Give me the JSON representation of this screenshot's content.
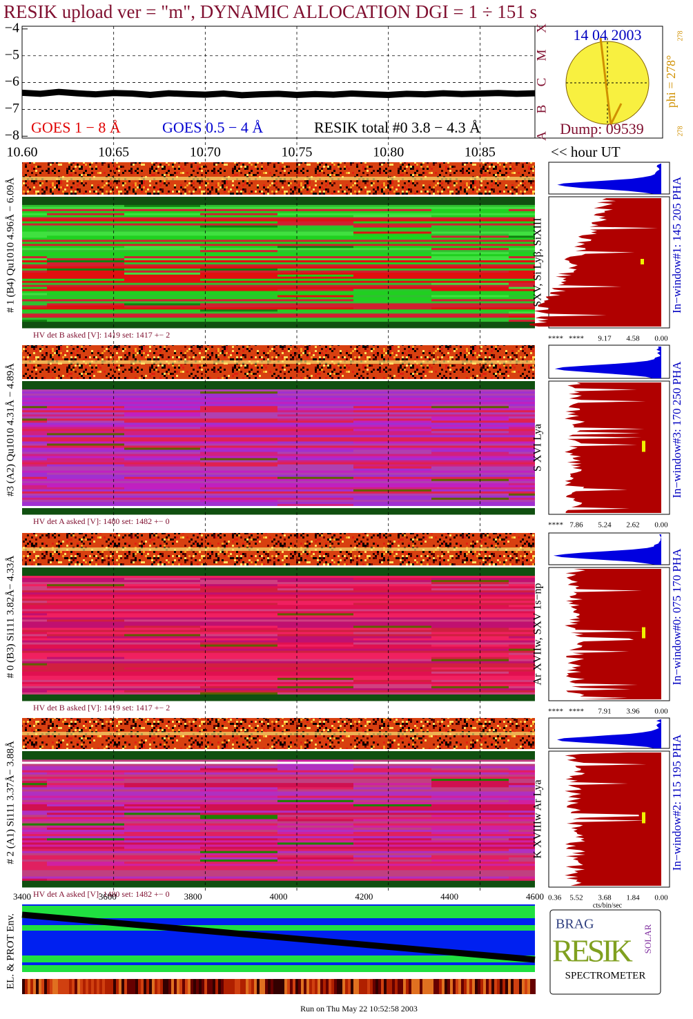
{
  "header": {
    "title": "RESIK upload ver = \"m\", DYNAMIC ALLOCATION  DGI =   1 ÷ 151 s"
  },
  "chart_data": {
    "type": "line",
    "x": [
      10.6,
      10.61,
      10.62,
      10.63,
      10.64,
      10.65,
      10.66,
      10.67,
      10.68,
      10.69,
      10.7,
      10.71,
      10.72,
      10.73,
      10.74,
      10.75,
      10.76,
      10.77,
      10.78,
      10.79,
      10.8,
      10.81,
      10.82,
      10.83,
      10.84,
      10.85,
      10.86,
      10.87,
      10.88
    ],
    "series": [
      {
        "name": "RESIK total #0  3.8 − 4.3 Å",
        "color": "#000000",
        "values": [
          -6.38,
          -6.42,
          -6.35,
          -6.4,
          -6.44,
          -6.39,
          -6.41,
          -6.46,
          -6.4,
          -6.43,
          -6.45,
          -6.41,
          -6.47,
          -6.44,
          -6.42,
          -6.46,
          -6.43,
          -6.45,
          -6.41,
          -6.44,
          -6.46,
          -6.42,
          -6.44,
          -6.4,
          -6.43,
          -6.41,
          -6.39,
          -6.42,
          -6.4
        ]
      }
    ],
    "annotations": [
      {
        "text": "GOES 1 − 8 Å",
        "color": "#e00000"
      },
      {
        "text": "GOES 0.5 − 4 Å",
        "color": "#0000d0"
      }
    ],
    "xlim": [
      10.6,
      10.88
    ],
    "xticks": [
      {
        "value": 10.6,
        "label": "10.60"
      },
      10.65,
      {
        "value": 10.7,
        "label": "10.70"
      },
      10.75,
      {
        "value": 10.8,
        "label": "10.80"
      },
      10.85
    ],
    "ylim": [
      -8.07,
      -3.9
    ],
    "yticks": [
      {
        "value": -4,
        "label": "−4"
      },
      {
        "value": -5,
        "label": "−5"
      },
      {
        "value": -6,
        "label": "−6"
      },
      {
        "value": -7,
        "label": "−7"
      },
      {
        "value": -8,
        "label": "−8"
      }
    ],
    "grid": true
  },
  "time_note": "<< hour UT",
  "sun": {
    "date": "14 04 2003",
    "dump": "Dump: 09539",
    "classes": [
      "A",
      "B",
      "C",
      "M",
      "X"
    ],
    "phi": "phi = 278°",
    "phi_top": "278",
    "phi_bottom": "278"
  },
  "panels": [
    {
      "label": "# 1 (B4) Qu1010 4.96Å − 6.09Å",
      "lines": "SXV, Si Lyβ, SiXIII",
      "window": "In−window#1:  145 205 PHA",
      "hv": "HV det B asked [V]:  1419 set:  1417 +−    2",
      "hist_ticks": [
        "****",
        "****",
        "9.17",
        "4.58",
        "0.00"
      ]
    },
    {
      "label": "#3 (A2) Qu1010  4.31Å − 4.89Å",
      "lines": "S XVI Lya",
      "window": "In−window#3:  170 250 PHA",
      "hv": "HV det A asked [V]:  1480 set:  1482 +−    0",
      "hist_ticks": [
        "****",
        "7.86",
        "5.24",
        "2.62",
        "0.00"
      ]
    },
    {
      "label": "# 0 (B3) Si111  3.82Å− 4.33Å",
      "lines": "Ar XVIIw,  SXV 1s−np",
      "window": "In−window#0:  075 170 PHA",
      "hv": "HV det B asked [V]:  1419 set:  1417 +−    2",
      "hist_ticks": [
        "****",
        "****",
        "7.91",
        "3.96",
        "0.00"
      ]
    },
    {
      "label": "# 2 (A1) Si111  3.37Å− 3.88Å",
      "lines": "K XVIIIw  Ar Lya",
      "window": "In−window#2:  115 195 PHA",
      "hv": "HV det A asked [V]:  1480 set:  1482 +−    0",
      "hist_ticks": [
        "0.36",
        "5.52",
        "3.68",
        "1.84",
        "0.00"
      ]
    }
  ],
  "hist_unit": "cts/bin/sec",
  "pha_ticks": [
    "3400",
    "3600",
    "3800",
    "4000",
    "4200",
    "4400",
    "4600"
  ],
  "env_label": "EL. & PROT Env.",
  "logo": {
    "brag": "BRAG",
    "resik": "RESIK",
    "solar": "SOLAR",
    "spectrometer": "SPECTROMETER"
  },
  "footer": "Run on Thu May 22 10:52:58 2003"
}
